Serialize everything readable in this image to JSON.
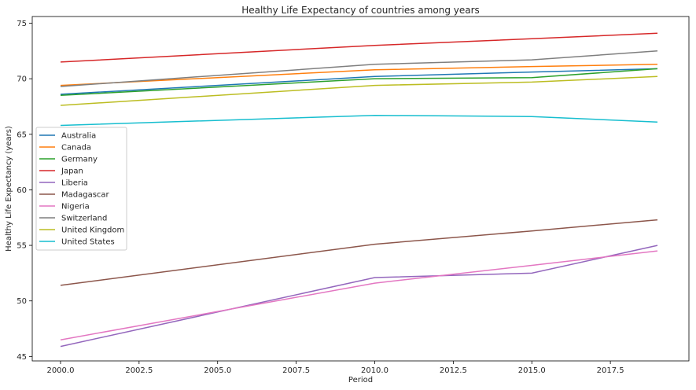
{
  "chart_data": {
    "type": "line",
    "title": "Healthy Life Expectancy of countries among years",
    "xlabel": "Period",
    "ylabel": "Healthy Life Expectancy (years)",
    "xlim": [
      1999.1,
      2020.0
    ],
    "ylim": [
      44.6,
      75.6
    ],
    "xticks": [
      2000.0,
      2002.5,
      2005.0,
      2007.5,
      2010.0,
      2012.5,
      2015.0,
      2017.5
    ],
    "xtick_labels": [
      "2000.0",
      "2002.5",
      "2005.0",
      "2007.5",
      "2010.0",
      "2012.5",
      "2015.0",
      "2017.5"
    ],
    "yticks": [
      45,
      50,
      55,
      60,
      65,
      70,
      75
    ],
    "ytick_labels": [
      "45",
      "50",
      "55",
      "60",
      "65",
      "70",
      "75"
    ],
    "grid": false,
    "legend_position": "center-left",
    "x": [
      2000,
      2010,
      2015,
      2019
    ],
    "series": [
      {
        "name": "Australia",
        "color": "#1f77b4",
        "values": [
          68.6,
          70.2,
          70.6,
          70.9
        ]
      },
      {
        "name": "Canada",
        "color": "#ff7f0e",
        "values": [
          69.4,
          70.8,
          71.1,
          71.3
        ]
      },
      {
        "name": "Germany",
        "color": "#2ca02c",
        "values": [
          68.5,
          70.0,
          70.1,
          70.9
        ]
      },
      {
        "name": "Japan",
        "color": "#d62728",
        "values": [
          71.5,
          73.0,
          73.6,
          74.1
        ]
      },
      {
        "name": "Liberia",
        "color": "#9467bd",
        "values": [
          45.9,
          52.1,
          52.5,
          55.0
        ]
      },
      {
        "name": "Madagascar",
        "color": "#8c564b",
        "values": [
          51.4,
          55.1,
          56.3,
          57.3
        ]
      },
      {
        "name": "Nigeria",
        "color": "#e377c2",
        "values": [
          46.5,
          51.6,
          53.2,
          54.5
        ]
      },
      {
        "name": "Switzerland",
        "color": "#7f7f7f",
        "values": [
          69.3,
          71.3,
          71.7,
          72.5
        ]
      },
      {
        "name": "United Kingdom",
        "color": "#bcbd22",
        "values": [
          67.6,
          69.4,
          69.7,
          70.2
        ]
      },
      {
        "name": "United States",
        "color": "#17becf",
        "values": [
          65.8,
          66.7,
          66.6,
          66.1
        ]
      }
    ]
  }
}
